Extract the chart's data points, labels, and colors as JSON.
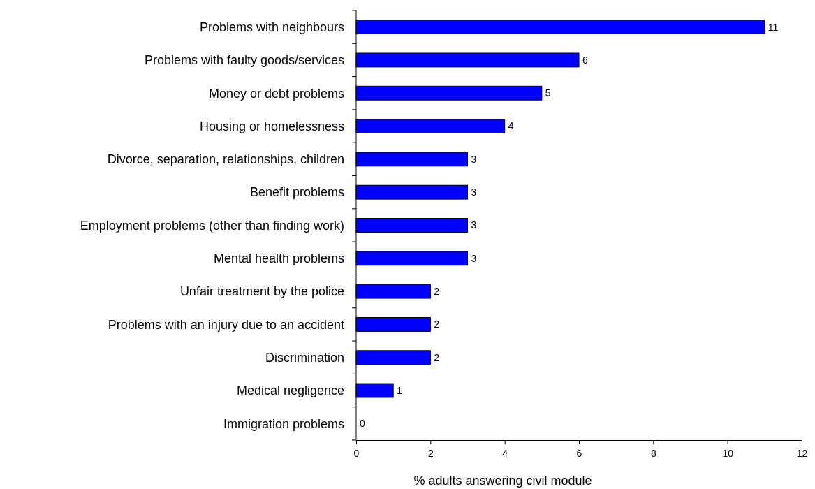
{
  "chart_data": {
    "type": "bar",
    "orientation": "horizontal",
    "xlabel": "% adults answering civil module",
    "categories": [
      "Problems with neighbours",
      "Problems with faulty goods/services",
      "Money or debt problems",
      "Housing or homelessness",
      "Divorce, separation, relationships, children",
      "Benefit problems",
      "Employment problems (other than finding work)",
      "Mental health problems",
      "Unfair treatment by the police",
      "Problems with an injury due to an accident",
      "Discrimination",
      "Medical negligence",
      "Immigration problems"
    ],
    "values": [
      11,
      6,
      5,
      4,
      3,
      3,
      3,
      3,
      2,
      2,
      2,
      1,
      0
    ],
    "color": "#0000ff",
    "xlim": [
      0,
      12
    ],
    "xticks": [
      0,
      2,
      4,
      6,
      8,
      10,
      12
    ],
    "grid": false,
    "data_labels": true
  }
}
